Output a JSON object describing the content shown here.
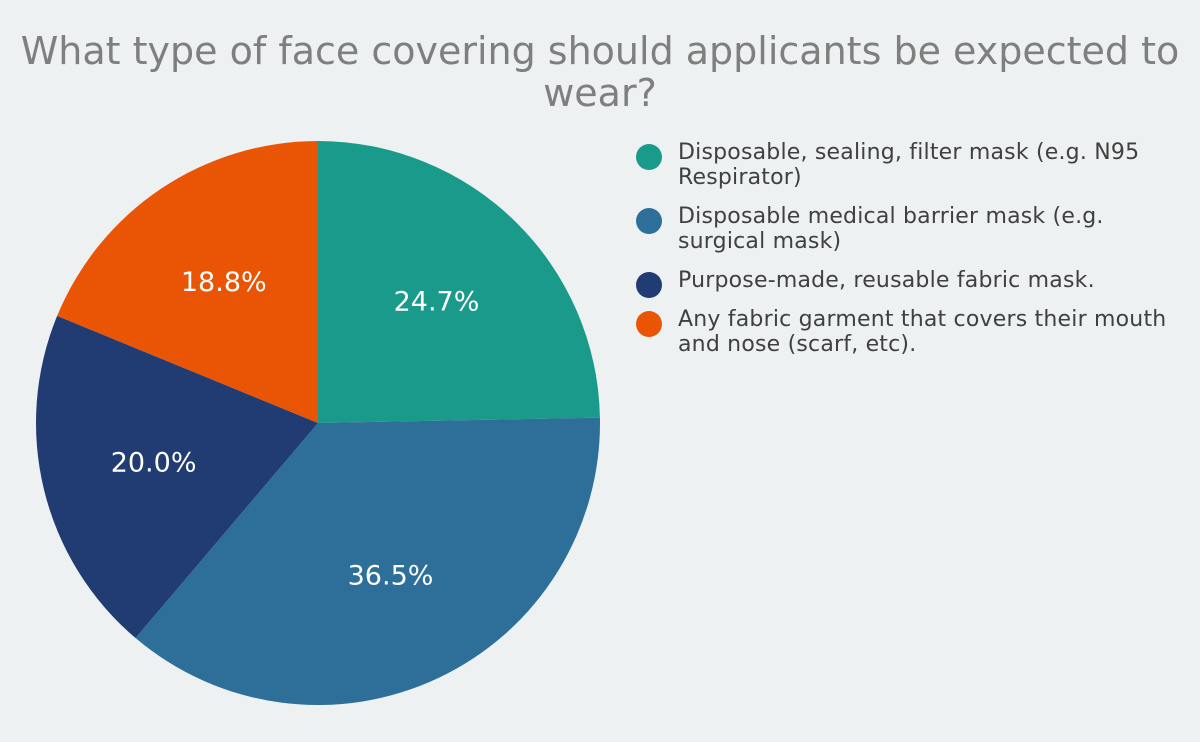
{
  "chart_data": {
    "type": "pie",
    "title": "What type of face covering should applicants be expected to wear?",
    "slices": [
      {
        "label": "Disposable, sealing, filter mask (e.g. N95 Respirator)",
        "value": 24.7,
        "display": "24.7%",
        "color": "#1a9a8a"
      },
      {
        "label": "Disposable medical barrier mask (e.g. surgical mask)",
        "value": 36.5,
        "display": "36.5%",
        "color": "#2e6f9a"
      },
      {
        "label": "Purpose-made, reusable fabric mask.",
        "value": 20.0,
        "display": "20.0%",
        "color": "#213b73"
      },
      {
        "label": "Any fabric garment that covers their mouth and nose (scarf, etc).",
        "value": 18.8,
        "display": "18.8%",
        "color": "#e95504"
      }
    ],
    "legend_position": "right",
    "start_angle": "12 o'clock",
    "direction": "clockwise"
  }
}
